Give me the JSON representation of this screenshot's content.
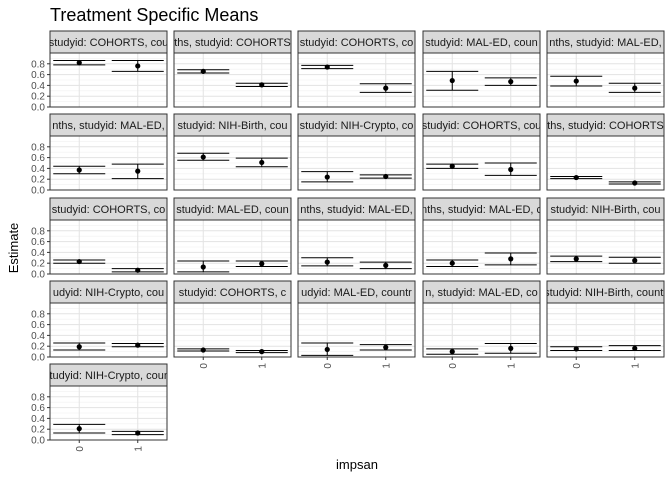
{
  "chart_data": {
    "type": "scatter",
    "title": "Treatment Specific Means",
    "xlabel": "impsan",
    "ylabel": "Estimate",
    "x_categories": [
      "0",
      "1"
    ],
    "y_ticks": [
      "0.0",
      "0.2",
      "0.4",
      "0.6",
      "0.8"
    ],
    "ylim": [
      0,
      1
    ],
    "grid": true,
    "panels": [
      {
        "strip": "studyid: COHORTS, cou",
        "points": [
          {
            "x": "0",
            "est": 0.82,
            "lo": 0.78,
            "hi": 0.86
          },
          {
            "x": "1",
            "est": 0.76,
            "lo": 0.66,
            "hi": 0.86
          }
        ]
      },
      {
        "strip": "ths, studyid: COHORTS",
        "points": [
          {
            "x": "0",
            "est": 0.66,
            "lo": 0.63,
            "hi": 0.69
          },
          {
            "x": "1",
            "est": 0.41,
            "lo": 0.38,
            "hi": 0.44
          }
        ]
      },
      {
        "strip": "studyid: COHORTS, co",
        "points": [
          {
            "x": "0",
            "est": 0.74,
            "lo": 0.71,
            "hi": 0.77
          },
          {
            "x": "1",
            "est": 0.35,
            "lo": 0.27,
            "hi": 0.43
          }
        ]
      },
      {
        "strip": "studyid: MAL-ED, coun",
        "points": [
          {
            "x": "0",
            "est": 0.49,
            "lo": 0.31,
            "hi": 0.66
          },
          {
            "x": "1",
            "est": 0.47,
            "lo": 0.4,
            "hi": 0.54
          }
        ]
      },
      {
        "strip": "nths, studyid: MAL-ED,",
        "points": [
          {
            "x": "0",
            "est": 0.48,
            "lo": 0.39,
            "hi": 0.57
          },
          {
            "x": "1",
            "est": 0.35,
            "lo": 0.27,
            "hi": 0.44
          }
        ]
      },
      {
        "strip": "nths, studyid: MAL-ED,",
        "points": [
          {
            "x": "0",
            "est": 0.37,
            "lo": 0.3,
            "hi": 0.44
          },
          {
            "x": "1",
            "est": 0.35,
            "lo": 0.21,
            "hi": 0.48
          }
        ]
      },
      {
        "strip": "studyid: NIH-Birth, cou",
        "points": [
          {
            "x": "0",
            "est": 0.61,
            "lo": 0.55,
            "hi": 0.68
          },
          {
            "x": "1",
            "est": 0.51,
            "lo": 0.43,
            "hi": 0.59
          }
        ]
      },
      {
        "strip": "studyid: NIH-Crypto, co",
        "points": [
          {
            "x": "0",
            "est": 0.24,
            "lo": 0.15,
            "hi": 0.34
          },
          {
            "x": "1",
            "est": 0.25,
            "lo": 0.22,
            "hi": 0.28
          }
        ]
      },
      {
        "strip": "studyid: COHORTS, cou",
        "points": [
          {
            "x": "0",
            "est": 0.44,
            "lo": 0.4,
            "hi": 0.48
          },
          {
            "x": "1",
            "est": 0.38,
            "lo": 0.27,
            "hi": 0.5
          }
        ]
      },
      {
        "strip": "ths, studyid: COHORTS",
        "points": [
          {
            "x": "0",
            "est": 0.23,
            "lo": 0.21,
            "hi": 0.25
          },
          {
            "x": "1",
            "est": 0.13,
            "lo": 0.11,
            "hi": 0.15
          }
        ]
      },
      {
        "strip": "studyid: COHORTS, co",
        "points": [
          {
            "x": "0",
            "est": 0.23,
            "lo": 0.2,
            "hi": 0.26
          },
          {
            "x": "1",
            "est": 0.07,
            "lo": 0.04,
            "hi": 0.1
          }
        ]
      },
      {
        "strip": "studyid: MAL-ED, coun",
        "points": [
          {
            "x": "0",
            "est": 0.13,
            "lo": 0.04,
            "hi": 0.24
          },
          {
            "x": "1",
            "est": 0.19,
            "lo": 0.14,
            "hi": 0.24
          }
        ]
      },
      {
        "strip": "nths, studyid: MAL-ED,",
        "points": [
          {
            "x": "0",
            "est": 0.22,
            "lo": 0.15,
            "hi": 0.3
          },
          {
            "x": "1",
            "est": 0.16,
            "lo": 0.1,
            "hi": 0.22
          }
        ]
      },
      {
        "strip": "nths, studyid: MAL-ED, c",
        "points": [
          {
            "x": "0",
            "est": 0.2,
            "lo": 0.14,
            "hi": 0.26
          },
          {
            "x": "1",
            "est": 0.28,
            "lo": 0.17,
            "hi": 0.39
          }
        ]
      },
      {
        "strip": "studyid: NIH-Birth, cou",
        "points": [
          {
            "x": "0",
            "est": 0.28,
            "lo": 0.23,
            "hi": 0.33
          },
          {
            "x": "1",
            "est": 0.25,
            "lo": 0.2,
            "hi": 0.31
          }
        ]
      },
      {
        "strip": "udyid: NIH-Crypto, cou",
        "points": [
          {
            "x": "0",
            "est": 0.19,
            "lo": 0.13,
            "hi": 0.26
          },
          {
            "x": "1",
            "est": 0.22,
            "lo": 0.19,
            "hi": 0.25
          }
        ]
      },
      {
        "strip": "studyid: COHORTS, c",
        "points": [
          {
            "x": "0",
            "est": 0.13,
            "lo": 0.11,
            "hi": 0.15
          },
          {
            "x": "1",
            "est": 0.1,
            "lo": 0.08,
            "hi": 0.12
          }
        ]
      },
      {
        "strip": "udyid: MAL-ED, countr",
        "points": [
          {
            "x": "0",
            "est": 0.14,
            "lo": 0.03,
            "hi": 0.26
          },
          {
            "x": "1",
            "est": 0.18,
            "lo": 0.13,
            "hi": 0.23
          }
        ]
      },
      {
        "strip": "n, studyid: MAL-ED, co",
        "points": [
          {
            "x": "0",
            "est": 0.1,
            "lo": 0.05,
            "hi": 0.15
          },
          {
            "x": "1",
            "est": 0.16,
            "lo": 0.07,
            "hi": 0.25
          }
        ]
      },
      {
        "strip": "studyid: NIH-Birth, countr",
        "points": [
          {
            "x": "0",
            "est": 0.15,
            "lo": 0.12,
            "hi": 0.19
          },
          {
            "x": "1",
            "est": 0.16,
            "lo": 0.12,
            "hi": 0.21
          }
        ]
      },
      {
        "strip": "studyid: NIH-Crypto, count",
        "points": [
          {
            "x": "0",
            "est": 0.21,
            "lo": 0.13,
            "hi": 0.29
          },
          {
            "x": "1",
            "est": 0.13,
            "lo": 0.1,
            "hi": 0.16
          }
        ]
      }
    ]
  }
}
